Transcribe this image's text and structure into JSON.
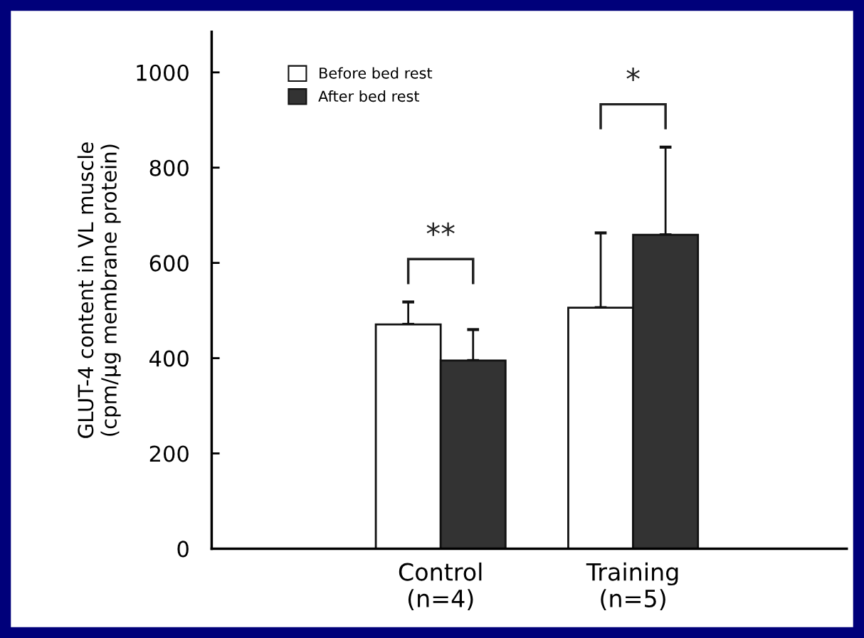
{
  "chart_data": {
    "type": "bar",
    "ylabel": "GLUT-4 content in VL muscle\n(cpm/μg membrane protein)",
    "categories": [
      null,
      "Control\n(n=4)",
      "Training\n(n=5)"
    ],
    "series": [
      {
        "name": "Before bed rest",
        "color": "#ffffff",
        "values": [
          null,
          471,
          506
        ],
        "errors": [
          null,
          [
            471,
            518
          ],
          [
            506,
            663
          ]
        ]
      },
      {
        "name": "After bed rest",
        "color": "#333333",
        "values": [
          null,
          395,
          659
        ],
        "errors": [
          null,
          [
            395,
            460
          ],
          [
            659,
            843
          ]
        ]
      }
    ],
    "ylim": [
      0,
      1085
    ],
    "yticks": [
      0,
      200,
      400,
      600,
      800,
      1000
    ],
    "annotations": [
      "**",
      "*"
    ],
    "grid": false,
    "legend": "top left"
  }
}
